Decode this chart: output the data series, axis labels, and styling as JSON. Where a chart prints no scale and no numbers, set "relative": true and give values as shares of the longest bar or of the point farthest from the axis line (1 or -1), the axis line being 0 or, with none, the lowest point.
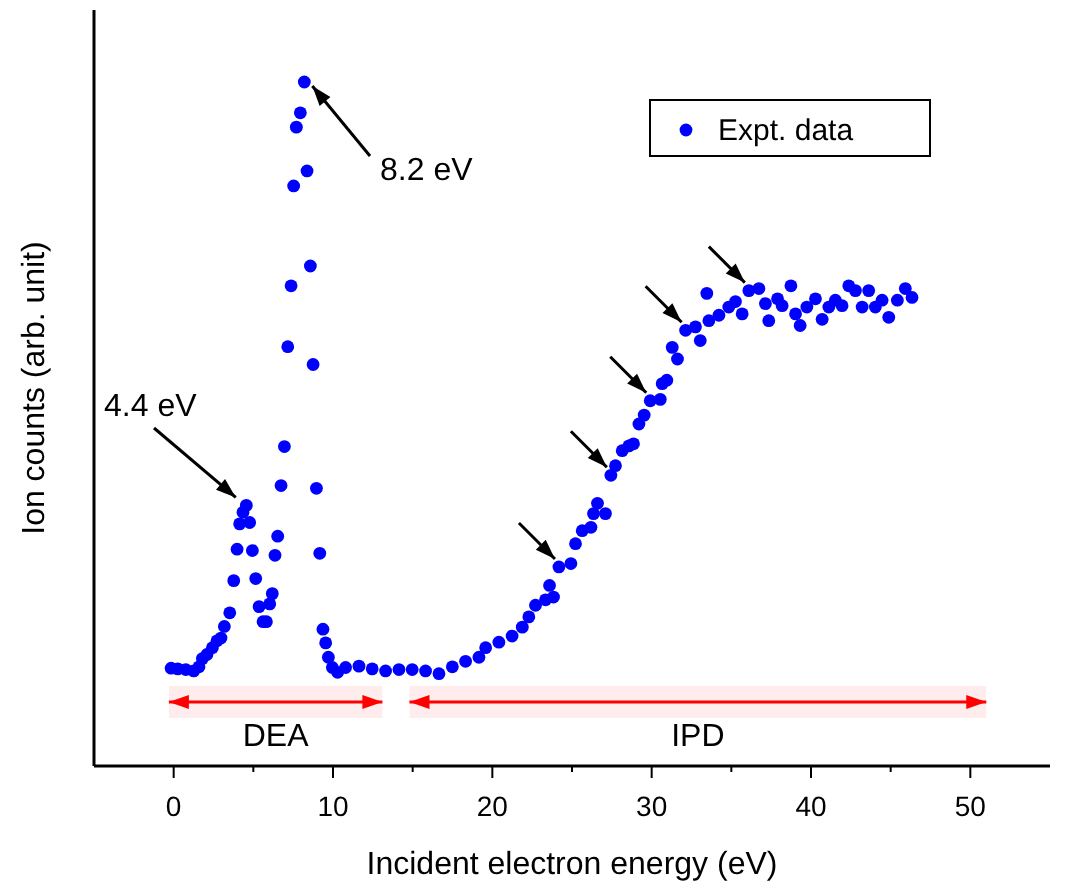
{
  "chart_data": {
    "type": "scatter",
    "relative": true,
    "xlabel": "Incident electron energy (eV)",
    "ylabel": "Ion counts (arb. unit)",
    "xlim": [
      -5,
      55
    ],
    "xticks": [
      0,
      {
        "value": 5,
        "label": null
      },
      10,
      {
        "value": 15,
        "label": null
      },
      20,
      {
        "value": 25,
        "label": null
      },
      30,
      {
        "value": 35,
        "label": null
      },
      40,
      {
        "value": 45,
        "label": null
      },
      50
    ],
    "tick_labels": "x",
    "legend": "top right",
    "marker": "circle",
    "series": [
      {
        "name": "Expt. data",
        "color": "#0000ff",
        "x": [
          -0.16,
          0.26,
          0.76,
          1.26,
          1.59,
          1.8,
          2.09,
          2.43,
          2.72,
          2.97,
          3.18,
          3.52,
          3.77,
          3.98,
          4.14,
          4.35,
          4.56,
          4.77,
          4.94,
          5.15,
          5.36,
          5.61,
          5.82,
          6.03,
          6.19,
          6.36,
          6.53,
          6.74,
          6.95,
          7.16,
          7.37,
          7.53,
          7.7,
          7.95,
          8.2,
          8.37,
          8.58,
          8.75,
          8.96,
          9.17,
          9.37,
          9.54,
          9.71,
          9.96,
          10.29,
          10.79,
          11.63,
          12.46,
          13.3,
          14.14,
          14.97,
          15.81,
          16.65,
          17.49,
          18.32,
          19.16,
          19.58,
          20.41,
          21.24,
          21.88,
          22.29,
          22.71,
          23.34,
          23.84,
          23.59,
          24.18,
          24.93,
          25.22,
          25.64,
          26.19,
          26.35,
          26.6,
          27.1,
          27.44,
          27.73,
          28.15,
          28.57,
          28.86,
          29.2,
          29.53,
          29.91,
          30.54,
          30.66,
          30.95,
          31.29,
          31.62,
          32.13,
          32.75,
          33.05,
          33.46,
          33.59,
          34.22,
          34.84,
          35.26,
          35.68,
          36.1,
          36.73,
          37.14,
          37.35,
          37.9,
          38.19,
          38.74,
          39.03,
          39.32,
          39.74,
          40.28,
          40.7,
          41.12,
          41.53,
          41.95,
          42.37,
          42.79,
          43.21,
          43.62,
          44.04,
          44.46,
          44.88,
          45.42,
          45.92,
          46.34
        ],
        "values": [
          0.143,
          0.142,
          0.141,
          0.139,
          0.145,
          0.157,
          0.163,
          0.173,
          0.183,
          0.187,
          0.204,
          0.224,
          0.271,
          0.317,
          0.354,
          0.371,
          0.381,
          0.356,
          0.315,
          0.274,
          0.233,
          0.211,
          0.211,
          0.237,
          0.252,
          0.308,
          0.336,
          0.41,
          0.467,
          0.613,
          0.702,
          0.848,
          0.934,
          0.955,
          1.0,
          0.87,
          0.731,
          0.587,
          0.406,
          0.311,
          0.2,
          0.18,
          0.159,
          0.144,
          0.137,
          0.144,
          0.146,
          0.142,
          0.139,
          0.141,
          0.141,
          0.139,
          0.135,
          0.145,
          0.153,
          0.159,
          0.173,
          0.181,
          0.19,
          0.203,
          0.218,
          0.235,
          0.243,
          0.247,
          0.264,
          0.291,
          0.296,
          0.325,
          0.344,
          0.349,
          0.369,
          0.384,
          0.369,
          0.425,
          0.439,
          0.461,
          0.468,
          0.471,
          0.5,
          0.513,
          0.534,
          0.536,
          0.559,
          0.564,
          0.612,
          0.595,
          0.637,
          0.642,
          0.622,
          0.691,
          0.651,
          0.659,
          0.671,
          0.679,
          0.661,
          0.695,
          0.698,
          0.676,
          0.651,
          0.683,
          0.673,
          0.702,
          0.661,
          0.644,
          0.671,
          0.683,
          0.653,
          0.671,
          0.681,
          0.673,
          0.702,
          0.695,
          0.671,
          0.695,
          0.671,
          0.681,
          0.656,
          0.681,
          0.698,
          0.685
        ]
      }
    ],
    "annotations": [
      {
        "text": "4.4 eV",
        "x": 4.4,
        "y": 0.381
      },
      {
        "text": "8.2 eV",
        "x": 8.2,
        "y": 1.0
      }
    ],
    "bands": [
      {
        "axis": "x",
        "from": -0.3,
        "to": 13.1,
        "label": "DEA",
        "color": "#ff0000"
      },
      {
        "axis": "x",
        "from": 14.8,
        "to": 51,
        "label": "IPD",
        "color": "#ff0000"
      }
    ]
  }
}
